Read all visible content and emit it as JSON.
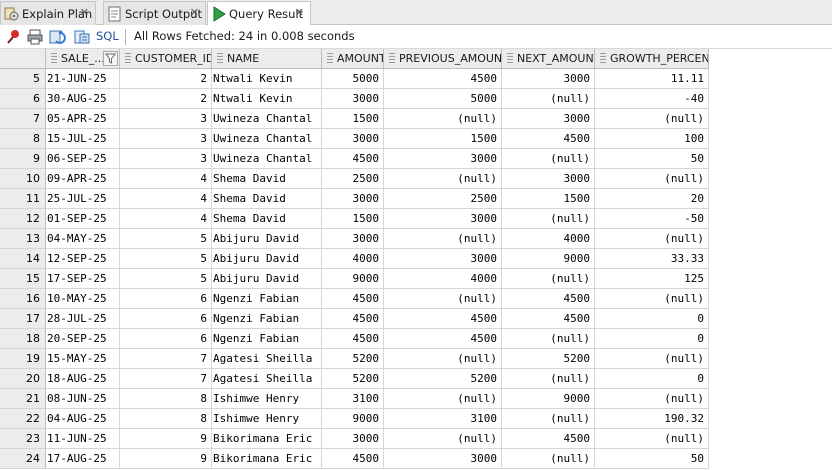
{
  "tabs": [
    {
      "label": "Explain Plan",
      "icon": "explain-plan-icon"
    },
    {
      "label": "Script Output",
      "icon": "script-output-icon"
    },
    {
      "label": "Query Result",
      "icon": "run-icon"
    }
  ],
  "toolbar": {
    "sql_label": "SQL",
    "status": "All Rows Fetched: 24 in 0.008 seconds"
  },
  "columns": [
    "SALE_...",
    "CUSTOMER_ID",
    "NAME",
    "AMOUNT",
    "PREVIOUS_AMOUNT",
    "NEXT_AMOUNT",
    "GROWTH_PERCENT"
  ],
  "rows": [
    {
      "n": "5",
      "sale": "21-JUN-25",
      "cid": "2",
      "name": "Ntwali Kevin",
      "amount": "5000",
      "prev": "4500",
      "next": "3000",
      "growth": "11.11"
    },
    {
      "n": "6",
      "sale": "30-AUG-25",
      "cid": "2",
      "name": "Ntwali Kevin",
      "amount": "3000",
      "prev": "5000",
      "next": "(null)",
      "growth": "-40"
    },
    {
      "n": "7",
      "sale": "05-APR-25",
      "cid": "3",
      "name": "Uwineza Chantal",
      "amount": "1500",
      "prev": "(null)",
      "next": "3000",
      "growth": "(null)"
    },
    {
      "n": "8",
      "sale": "15-JUL-25",
      "cid": "3",
      "name": "Uwineza Chantal",
      "amount": "3000",
      "prev": "1500",
      "next": "4500",
      "growth": "100"
    },
    {
      "n": "9",
      "sale": "06-SEP-25",
      "cid": "3",
      "name": "Uwineza Chantal",
      "amount": "4500",
      "prev": "3000",
      "next": "(null)",
      "growth": "50"
    },
    {
      "n": "10",
      "sale": "09-APR-25",
      "cid": "4",
      "name": "Shema David",
      "amount": "2500",
      "prev": "(null)",
      "next": "3000",
      "growth": "(null)"
    },
    {
      "n": "11",
      "sale": "25-JUL-25",
      "cid": "4",
      "name": "Shema David",
      "amount": "3000",
      "prev": "2500",
      "next": "1500",
      "growth": "20"
    },
    {
      "n": "12",
      "sale": "01-SEP-25",
      "cid": "4",
      "name": "Shema David",
      "amount": "1500",
      "prev": "3000",
      "next": "(null)",
      "growth": "-50"
    },
    {
      "n": "13",
      "sale": "04-MAY-25",
      "cid": "5",
      "name": "Abijuru David",
      "amount": "3000",
      "prev": "(null)",
      "next": "4000",
      "growth": "(null)"
    },
    {
      "n": "14",
      "sale": "12-SEP-25",
      "cid": "5",
      "name": "Abijuru David",
      "amount": "4000",
      "prev": "3000",
      "next": "9000",
      "growth": "33.33"
    },
    {
      "n": "15",
      "sale": "17-SEP-25",
      "cid": "5",
      "name": "Abijuru David",
      "amount": "9000",
      "prev": "4000",
      "next": "(null)",
      "growth": "125"
    },
    {
      "n": "16",
      "sale": "10-MAY-25",
      "cid": "6",
      "name": "Ngenzi Fabian",
      "amount": "4500",
      "prev": "(null)",
      "next": "4500",
      "growth": "(null)"
    },
    {
      "n": "17",
      "sale": "28-JUL-25",
      "cid": "6",
      "name": "Ngenzi Fabian",
      "amount": "4500",
      "prev": "4500",
      "next": "4500",
      "growth": "0"
    },
    {
      "n": "18",
      "sale": "20-SEP-25",
      "cid": "6",
      "name": "Ngenzi Fabian",
      "amount": "4500",
      "prev": "4500",
      "next": "(null)",
      "growth": "0"
    },
    {
      "n": "19",
      "sale": "15-MAY-25",
      "cid": "7",
      "name": "Agatesi Sheilla",
      "amount": "5200",
      "prev": "(null)",
      "next": "5200",
      "growth": "(null)"
    },
    {
      "n": "20",
      "sale": "18-AUG-25",
      "cid": "7",
      "name": "Agatesi Sheilla",
      "amount": "5200",
      "prev": "5200",
      "next": "(null)",
      "growth": "0"
    },
    {
      "n": "21",
      "sale": "08-JUN-25",
      "cid": "8",
      "name": "Ishimwe Henry",
      "amount": "3100",
      "prev": "(null)",
      "next": "9000",
      "growth": "(null)"
    },
    {
      "n": "22",
      "sale": "04-AUG-25",
      "cid": "8",
      "name": "Ishimwe Henry",
      "amount": "9000",
      "prev": "3100",
      "next": "(null)",
      "growth": "190.32"
    },
    {
      "n": "23",
      "sale": "11-JUN-25",
      "cid": "9",
      "name": "Bikorimana Eric",
      "amount": "3000",
      "prev": "(null)",
      "next": "4500",
      "growth": "(null)"
    },
    {
      "n": "24",
      "sale": "17-AUG-25",
      "cid": "9",
      "name": "Bikorimana Eric",
      "amount": "4500",
      "prev": "3000",
      "next": "(null)",
      "growth": "50"
    }
  ]
}
